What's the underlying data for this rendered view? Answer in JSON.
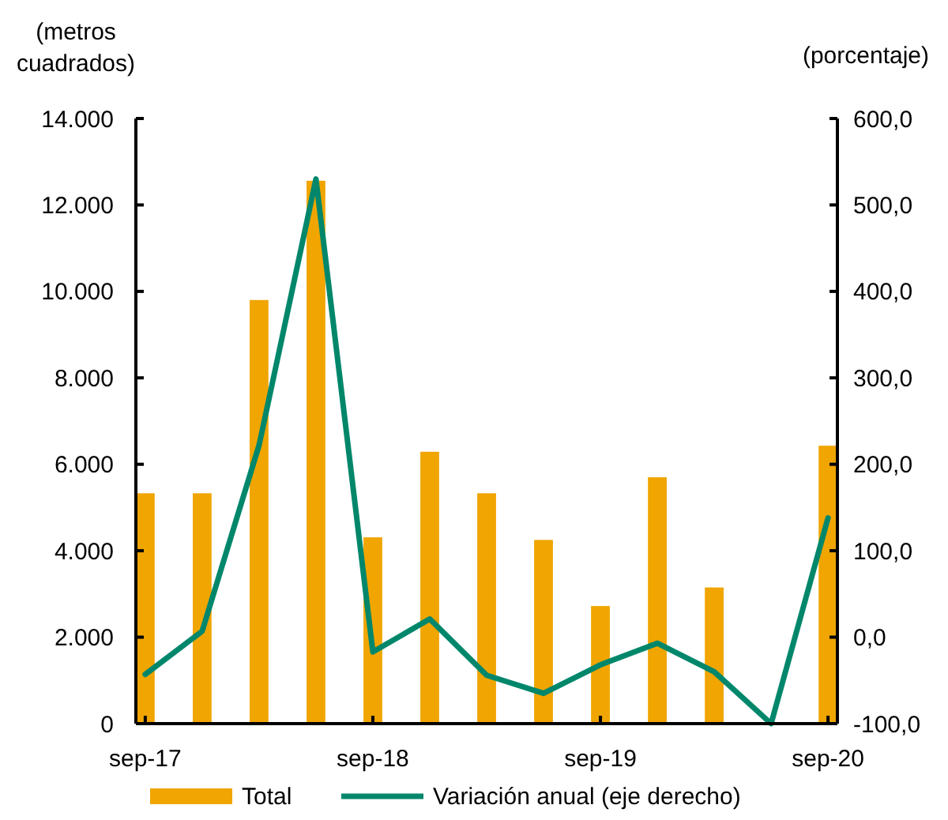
{
  "chart_data": {
    "type": "bar",
    "ylabel": "(metros cuadrados)",
    "y2label": "(porcentaje)",
    "categories": [
      "sep-17",
      null,
      null,
      null,
      "sep-18",
      null,
      null,
      null,
      "sep-19",
      null,
      null,
      null,
      "sep-20"
    ],
    "series": [
      {
        "name": "Total",
        "color": "#f0a500",
        "values": [
          5330,
          5330,
          9800,
          12560,
          4310,
          6290,
          5330,
          4250,
          2720,
          5700,
          3150,
          0,
          6430
        ]
      },
      {
        "name": "Variación anual (eje derecho)",
        "type": "line",
        "axis": "y2",
        "color": "#00876b",
        "values": [
          -43,
          7,
          222,
          530,
          -17,
          21,
          -44,
          -65,
          -32,
          -7,
          -40,
          -100,
          138
        ]
      }
    ],
    "ylim": [
      0,
      14000
    ],
    "yticks": [
      {
        "value": 0,
        "label": "0"
      },
      {
        "value": 2000,
        "label": "2.000"
      },
      {
        "value": 4000,
        "label": "4.000"
      },
      {
        "value": 6000,
        "label": "6.000"
      },
      {
        "value": 8000,
        "label": "8.000"
      },
      {
        "value": 10000,
        "label": "10.000"
      },
      {
        "value": 12000,
        "label": "12.000"
      },
      {
        "value": 14000,
        "label": "14.000"
      }
    ],
    "y2lim": [
      -100,
      600
    ],
    "y2ticks": [
      {
        "value": -100,
        "label": "-100,0"
      },
      {
        "value": 0,
        "label": "0,0"
      },
      {
        "value": 100,
        "label": "100,0"
      },
      {
        "value": 200,
        "label": "200,0"
      },
      {
        "value": 300,
        "label": "300,0"
      },
      {
        "value": 400,
        "label": "400,0"
      },
      {
        "value": 500,
        "label": "500,0"
      },
      {
        "value": 600,
        "label": "600,0"
      }
    ],
    "legend": "bottom",
    "grid": false,
    "marker": "none",
    "line_style": "solid"
  }
}
